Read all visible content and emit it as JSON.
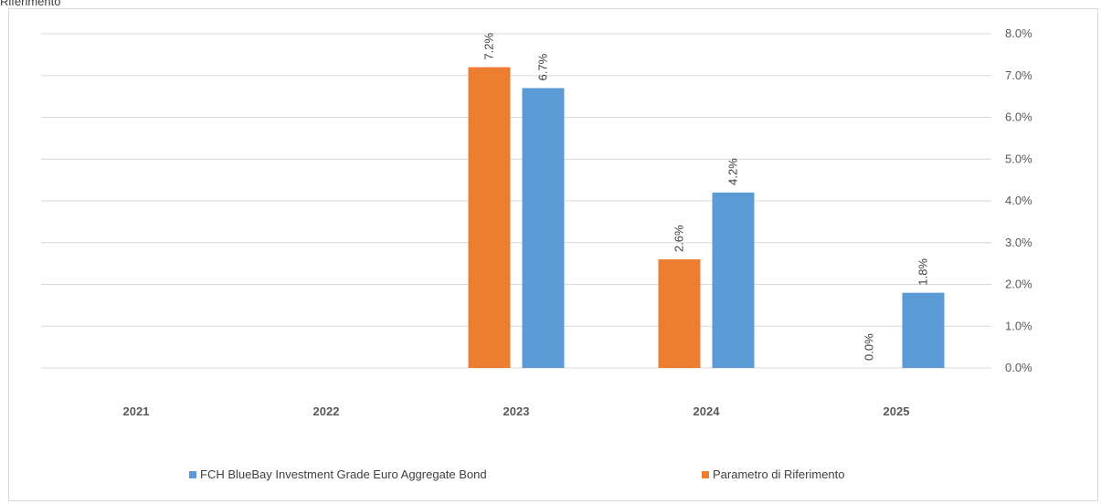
{
  "header": {
    "partial_label": "Riferimento"
  },
  "chart_data": {
    "type": "bar",
    "categories": [
      "2021",
      "2022",
      "2023",
      "2024",
      "2025"
    ],
    "series": [
      {
        "name": "Parametro di Riferimento",
        "color": "#ed7d31",
        "values": [
          null,
          null,
          7.2,
          2.6,
          0.0
        ],
        "labels": [
          "",
          "",
          "7.2%",
          "2.6%",
          "0.0%"
        ]
      },
      {
        "name": "FCH BlueBay Investment Grade Euro Aggregate Bond",
        "color": "#5b9bd5",
        "values": [
          null,
          null,
          6.7,
          4.2,
          1.8
        ],
        "labels": [
          "",
          "",
          "6.7%",
          "4.2%",
          "1.8%"
        ]
      }
    ],
    "ylim": [
      0,
      8
    ],
    "yticks": [
      "0.0%",
      "1.0%",
      "2.0%",
      "3.0%",
      "4.0%",
      "5.0%",
      "6.0%",
      "7.0%",
      "8.0%"
    ],
    "y_axis_side": "right",
    "grid": true,
    "legend_position": "bottom",
    "title": "",
    "xlabel": "",
    "ylabel": ""
  },
  "legend": {
    "items": [
      {
        "label": "FCH BlueBay Investment Grade Euro Aggregate Bond",
        "color": "#5b9bd5"
      },
      {
        "label": "Parametro di Riferimento",
        "color": "#ed7d31"
      }
    ]
  }
}
